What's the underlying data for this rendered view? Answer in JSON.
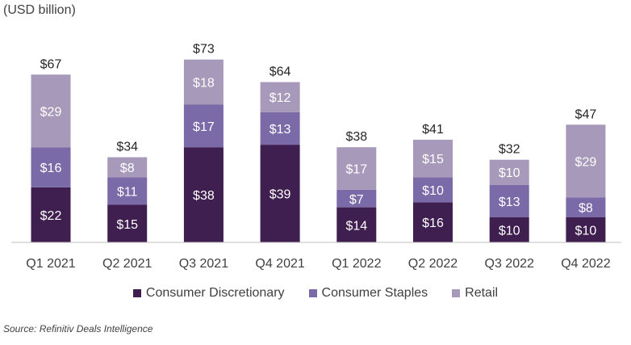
{
  "unit_label": "(USD billion)",
  "source": "Source: Refinitiv Deals Intelligence",
  "chart_data": {
    "type": "bar",
    "stacked": true,
    "categories": [
      "Q1 2021",
      "Q2 2021",
      "Q3 2021",
      "Q4 2021",
      "Q1 2022",
      "Q2 2022",
      "Q3 2022",
      "Q4 2022"
    ],
    "series": [
      {
        "name": "Consumer Discretionary",
        "color": "#3f1f4f",
        "values": [
          22,
          15,
          38,
          39,
          14,
          16,
          10,
          10
        ],
        "labels": [
          "$22",
          "$15",
          "$38",
          "$39",
          "$14",
          "$16",
          "$10",
          "$10"
        ]
      },
      {
        "name": "Consumer Staples",
        "color": "#7b6aa8",
        "values": [
          16,
          11,
          17,
          13,
          7,
          10,
          13,
          8
        ],
        "labels": [
          "$16",
          "$11",
          "$17",
          "$13",
          "$7",
          "$10",
          "$13",
          "$8"
        ]
      },
      {
        "name": "Retail",
        "color": "#a799b9",
        "values": [
          29,
          8,
          18,
          12,
          17,
          15,
          10,
          29
        ],
        "labels": [
          "$29",
          "$8",
          "$18",
          "$12",
          "$17",
          "$15",
          "$10",
          "$29"
        ]
      }
    ],
    "totals": [
      67,
      34,
      73,
      64,
      38,
      41,
      32,
      47
    ],
    "total_labels": [
      "$67",
      "$34",
      "$73",
      "$64",
      "$38",
      "$41",
      "$32",
      "$47"
    ],
    "ylim": [
      0,
      80
    ],
    "grid": false,
    "legend_position": "bottom"
  }
}
